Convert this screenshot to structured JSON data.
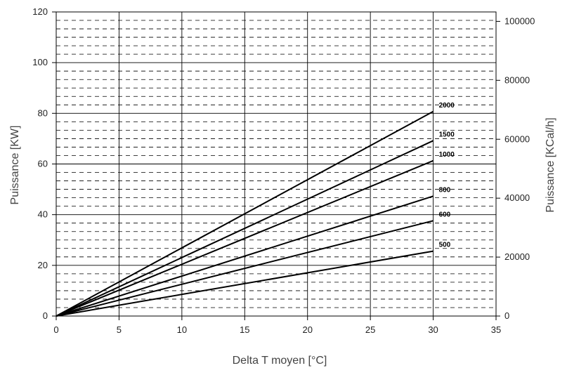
{
  "chart_data": {
    "type": "line",
    "xlabel": "Delta T moyen [°C]",
    "ylabel": "Puissance [KW]",
    "y2label": "Puissance [KCal/h]",
    "xlim": [
      0,
      35
    ],
    "ylim": [
      0,
      120
    ],
    "y2lim": [
      0,
      103200
    ],
    "x_ticks": [
      "0",
      "5",
      "10",
      "15",
      "20",
      "25",
      "30",
      "35"
    ],
    "y_ticks": [
      "0",
      "20",
      "40",
      "60",
      "80",
      "100",
      "120"
    ],
    "y2_ticks": [
      "0",
      "20000",
      "40000",
      "60000",
      "80000",
      "100000"
    ],
    "y2_tick_values": [
      0,
      20000,
      40000,
      60000,
      80000,
      100000
    ],
    "grid": {
      "major": "solid",
      "minor": "dashed"
    },
    "series": [
      {
        "name": "2000",
        "x": [
          0,
          30
        ],
        "y": [
          0,
          80.7
        ]
      },
      {
        "name": "1500",
        "x": [
          0,
          30
        ],
        "y": [
          0,
          69.2
        ]
      },
      {
        "name": "1000",
        "x": [
          0,
          30
        ],
        "y": [
          0,
          61.3
        ]
      },
      {
        "name": "800",
        "x": [
          0,
          30
        ],
        "y": [
          0,
          47.3
        ]
      },
      {
        "name": "600",
        "x": [
          0,
          30
        ],
        "y": [
          0,
          37.6
        ]
      },
      {
        "name": "500",
        "x": [
          0,
          30
        ],
        "y": [
          0,
          25.6
        ]
      }
    ]
  }
}
